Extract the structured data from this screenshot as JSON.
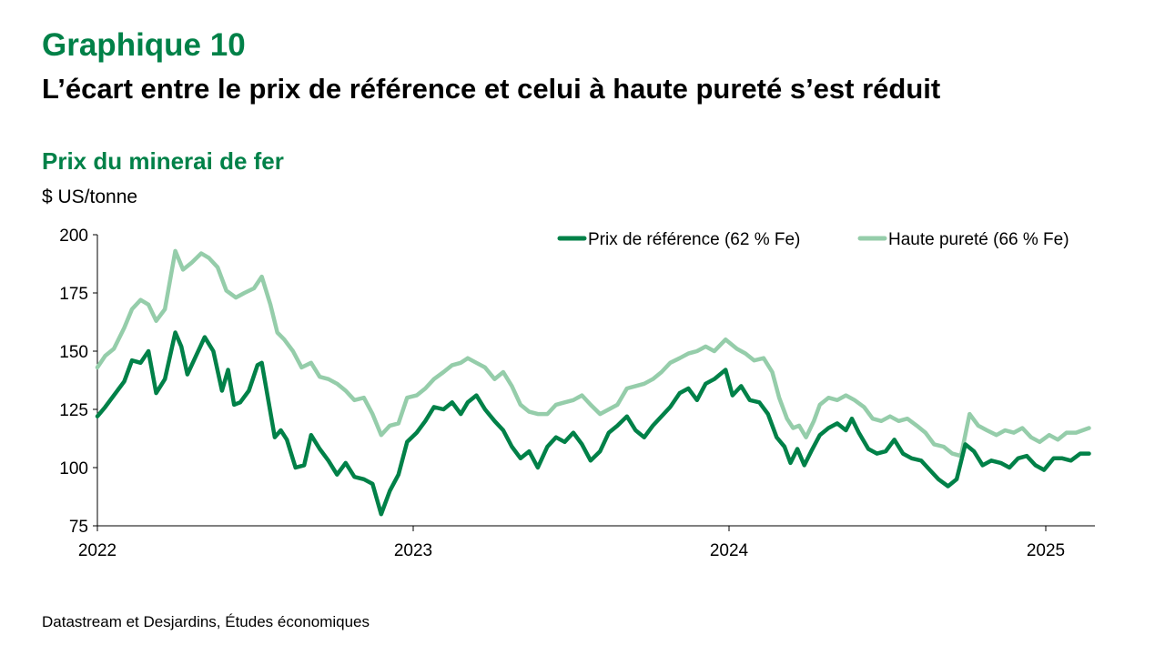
{
  "header": {
    "title": "Graphique 10",
    "subtitle": "L’écart entre le prix de référence et celui à haute pureté s’est réduit"
  },
  "footer": {
    "source": "Datastream et Desjardins, Études économiques"
  },
  "colors": {
    "accent": "#008148",
    "series_ref": "#008148",
    "series_high": "#95cdaa"
  },
  "chart_data": {
    "type": "line",
    "title": "Prix du minerai de fer",
    "ylabel": "$ US/tonne",
    "xlabel": "",
    "x_ticks": [
      "2022",
      "2023",
      "2024",
      "2025"
    ],
    "y_ticks": [
      75,
      100,
      125,
      150,
      175,
      200
    ],
    "ylim": [
      75,
      200
    ],
    "xlim": [
      "2022-01-01",
      "2025-02-20"
    ],
    "grid": false,
    "legend_position": "top-right",
    "series": [
      {
        "name": "Prix de référence (62 % Fe)",
        "color": "#008148",
        "points": [
          [
            "2022-01-01",
            122
          ],
          [
            "2022-01-10",
            126
          ],
          [
            "2022-01-20",
            131
          ],
          [
            "2022-02-01",
            137
          ],
          [
            "2022-02-10",
            146
          ],
          [
            "2022-02-20",
            145
          ],
          [
            "2022-03-01",
            150
          ],
          [
            "2022-03-10",
            132
          ],
          [
            "2022-03-20",
            138
          ],
          [
            "2022-04-01",
            158
          ],
          [
            "2022-04-08",
            152
          ],
          [
            "2022-04-15",
            140
          ],
          [
            "2022-04-25",
            148
          ],
          [
            "2022-05-05",
            156
          ],
          [
            "2022-05-15",
            150
          ],
          [
            "2022-05-25",
            133
          ],
          [
            "2022-06-01",
            142
          ],
          [
            "2022-06-08",
            127
          ],
          [
            "2022-06-15",
            128
          ],
          [
            "2022-06-25",
            133
          ],
          [
            "2022-07-05",
            144
          ],
          [
            "2022-07-10",
            145
          ],
          [
            "2022-07-18",
            128
          ],
          [
            "2022-07-25",
            113
          ],
          [
            "2022-08-01",
            116
          ],
          [
            "2022-08-08",
            112
          ],
          [
            "2022-08-18",
            100
          ],
          [
            "2022-08-28",
            101
          ],
          [
            "2022-09-05",
            114
          ],
          [
            "2022-09-15",
            108
          ],
          [
            "2022-09-25",
            103
          ],
          [
            "2022-10-05",
            97
          ],
          [
            "2022-10-15",
            102
          ],
          [
            "2022-10-25",
            96
          ],
          [
            "2022-11-05",
            95
          ],
          [
            "2022-11-15",
            93
          ],
          [
            "2022-11-25",
            80
          ],
          [
            "2022-12-05",
            90
          ],
          [
            "2022-12-15",
            97
          ],
          [
            "2022-12-25",
            111
          ],
          [
            "2023-01-05",
            115
          ],
          [
            "2023-01-15",
            120
          ],
          [
            "2023-01-25",
            126
          ],
          [
            "2023-02-05",
            125
          ],
          [
            "2023-02-15",
            128
          ],
          [
            "2023-02-25",
            123
          ],
          [
            "2023-03-05",
            128
          ],
          [
            "2023-03-15",
            131
          ],
          [
            "2023-03-25",
            125
          ],
          [
            "2023-04-05",
            120
          ],
          [
            "2023-04-15",
            116
          ],
          [
            "2023-04-25",
            109
          ],
          [
            "2023-05-05",
            104
          ],
          [
            "2023-05-15",
            107
          ],
          [
            "2023-05-25",
            100
          ],
          [
            "2023-06-05",
            109
          ],
          [
            "2023-06-15",
            113
          ],
          [
            "2023-06-25",
            111
          ],
          [
            "2023-07-05",
            115
          ],
          [
            "2023-07-15",
            110
          ],
          [
            "2023-07-25",
            103
          ],
          [
            "2023-08-05",
            107
          ],
          [
            "2023-08-15",
            115
          ],
          [
            "2023-08-25",
            118
          ],
          [
            "2023-09-05",
            122
          ],
          [
            "2023-09-15",
            116
          ],
          [
            "2023-09-25",
            113
          ],
          [
            "2023-10-05",
            118
          ],
          [
            "2023-10-15",
            122
          ],
          [
            "2023-10-25",
            126
          ],
          [
            "2023-11-05",
            132
          ],
          [
            "2023-11-15",
            134
          ],
          [
            "2023-11-25",
            129
          ],
          [
            "2023-12-05",
            136
          ],
          [
            "2023-12-15",
            138
          ],
          [
            "2023-12-28",
            142
          ],
          [
            "2024-01-05",
            131
          ],
          [
            "2024-01-15",
            135
          ],
          [
            "2024-01-25",
            129
          ],
          [
            "2024-02-05",
            128
          ],
          [
            "2024-02-15",
            123
          ],
          [
            "2024-02-25",
            113
          ],
          [
            "2024-03-05",
            109
          ],
          [
            "2024-03-12",
            102
          ],
          [
            "2024-03-20",
            108
          ],
          [
            "2024-03-28",
            101
          ],
          [
            "2024-04-05",
            107
          ],
          [
            "2024-04-15",
            114
          ],
          [
            "2024-04-25",
            117
          ],
          [
            "2024-05-05",
            119
          ],
          [
            "2024-05-15",
            116
          ],
          [
            "2024-05-22",
            121
          ],
          [
            "2024-05-30",
            115
          ],
          [
            "2024-06-10",
            108
          ],
          [
            "2024-06-20",
            106
          ],
          [
            "2024-06-30",
            107
          ],
          [
            "2024-07-10",
            112
          ],
          [
            "2024-07-20",
            106
          ],
          [
            "2024-07-30",
            104
          ],
          [
            "2024-08-10",
            103
          ],
          [
            "2024-08-20",
            99
          ],
          [
            "2024-08-30",
            95
          ],
          [
            "2024-09-10",
            92
          ],
          [
            "2024-09-20",
            95
          ],
          [
            "2024-09-30",
            110
          ],
          [
            "2024-10-10",
            107
          ],
          [
            "2024-10-20",
            101
          ],
          [
            "2024-10-30",
            103
          ],
          [
            "2024-11-10",
            102
          ],
          [
            "2024-11-20",
            100
          ],
          [
            "2024-11-30",
            104
          ],
          [
            "2024-12-10",
            105
          ],
          [
            "2024-12-20",
            101
          ],
          [
            "2024-12-30",
            99
          ],
          [
            "2025-01-10",
            104
          ],
          [
            "2025-01-20",
            104
          ],
          [
            "2025-01-30",
            103
          ],
          [
            "2025-02-10",
            106
          ],
          [
            "2025-02-20",
            106
          ]
        ]
      },
      {
        "name": "Haute pureté (66 % Fe)",
        "color": "#95cdaa",
        "points": [
          [
            "2022-01-01",
            143
          ],
          [
            "2022-01-10",
            148
          ],
          [
            "2022-01-20",
            151
          ],
          [
            "2022-02-01",
            160
          ],
          [
            "2022-02-10",
            168
          ],
          [
            "2022-02-20",
            172
          ],
          [
            "2022-03-01",
            170
          ],
          [
            "2022-03-10",
            163
          ],
          [
            "2022-03-20",
            168
          ],
          [
            "2022-04-01",
            193
          ],
          [
            "2022-04-10",
            185
          ],
          [
            "2022-04-20",
            188
          ],
          [
            "2022-05-01",
            192
          ],
          [
            "2022-05-10",
            190
          ],
          [
            "2022-05-20",
            186
          ],
          [
            "2022-05-30",
            176
          ],
          [
            "2022-06-10",
            173
          ],
          [
            "2022-06-20",
            175
          ],
          [
            "2022-07-01",
            177
          ],
          [
            "2022-07-10",
            182
          ],
          [
            "2022-07-20",
            170
          ],
          [
            "2022-07-28",
            158
          ],
          [
            "2022-08-05",
            155
          ],
          [
            "2022-08-15",
            150
          ],
          [
            "2022-08-25",
            143
          ],
          [
            "2022-09-05",
            145
          ],
          [
            "2022-09-15",
            139
          ],
          [
            "2022-09-25",
            138
          ],
          [
            "2022-10-05",
            136
          ],
          [
            "2022-10-15",
            133
          ],
          [
            "2022-10-25",
            129
          ],
          [
            "2022-11-05",
            130
          ],
          [
            "2022-11-15",
            123
          ],
          [
            "2022-11-25",
            114
          ],
          [
            "2022-12-05",
            118
          ],
          [
            "2022-12-15",
            119
          ],
          [
            "2022-12-25",
            130
          ],
          [
            "2023-01-05",
            131
          ],
          [
            "2023-01-15",
            134
          ],
          [
            "2023-01-25",
            138
          ],
          [
            "2023-02-05",
            141
          ],
          [
            "2023-02-15",
            144
          ],
          [
            "2023-02-25",
            145
          ],
          [
            "2023-03-05",
            147
          ],
          [
            "2023-03-15",
            145
          ],
          [
            "2023-03-25",
            143
          ],
          [
            "2023-04-05",
            138
          ],
          [
            "2023-04-15",
            141
          ],
          [
            "2023-04-25",
            135
          ],
          [
            "2023-05-05",
            127
          ],
          [
            "2023-05-15",
            124
          ],
          [
            "2023-05-25",
            123
          ],
          [
            "2023-06-05",
            123
          ],
          [
            "2023-06-15",
            127
          ],
          [
            "2023-06-25",
            128
          ],
          [
            "2023-07-05",
            129
          ],
          [
            "2023-07-15",
            131
          ],
          [
            "2023-07-25",
            127
          ],
          [
            "2023-08-05",
            123
          ],
          [
            "2023-08-15",
            125
          ],
          [
            "2023-08-25",
            127
          ],
          [
            "2023-09-05",
            134
          ],
          [
            "2023-09-15",
            135
          ],
          [
            "2023-09-25",
            136
          ],
          [
            "2023-10-05",
            138
          ],
          [
            "2023-10-15",
            141
          ],
          [
            "2023-10-25",
            145
          ],
          [
            "2023-11-05",
            147
          ],
          [
            "2023-11-15",
            149
          ],
          [
            "2023-11-25",
            150
          ],
          [
            "2023-12-05",
            152
          ],
          [
            "2023-12-15",
            150
          ],
          [
            "2023-12-28",
            155
          ],
          [
            "2024-01-10",
            151
          ],
          [
            "2024-01-20",
            149
          ],
          [
            "2024-01-30",
            146
          ],
          [
            "2024-02-10",
            147
          ],
          [
            "2024-02-20",
            141
          ],
          [
            "2024-02-28",
            130
          ],
          [
            "2024-03-08",
            121
          ],
          [
            "2024-03-15",
            117
          ],
          [
            "2024-03-22",
            118
          ],
          [
            "2024-03-30",
            113
          ],
          [
            "2024-04-08",
            120
          ],
          [
            "2024-04-15",
            127
          ],
          [
            "2024-04-25",
            130
          ],
          [
            "2024-05-05",
            129
          ],
          [
            "2024-05-15",
            131
          ],
          [
            "2024-05-25",
            129
          ],
          [
            "2024-06-05",
            126
          ],
          [
            "2024-06-15",
            121
          ],
          [
            "2024-06-25",
            120
          ],
          [
            "2024-07-05",
            122
          ],
          [
            "2024-07-15",
            120
          ],
          [
            "2024-07-25",
            121
          ],
          [
            "2024-08-05",
            118
          ],
          [
            "2024-08-15",
            115
          ],
          [
            "2024-08-25",
            110
          ],
          [
            "2024-09-05",
            109
          ],
          [
            "2024-09-15",
            106
          ],
          [
            "2024-09-25",
            105
          ],
          [
            "2024-10-05",
            123
          ],
          [
            "2024-10-15",
            118
          ],
          [
            "2024-10-25",
            116
          ],
          [
            "2024-11-05",
            114
          ],
          [
            "2024-11-15",
            116
          ],
          [
            "2024-11-25",
            115
          ],
          [
            "2024-12-05",
            117
          ],
          [
            "2024-12-15",
            113
          ],
          [
            "2024-12-25",
            111
          ],
          [
            "2025-01-05",
            114
          ],
          [
            "2025-01-15",
            112
          ],
          [
            "2025-01-25",
            115
          ],
          [
            "2025-02-05",
            115
          ],
          [
            "2025-02-20",
            117
          ]
        ]
      }
    ]
  }
}
